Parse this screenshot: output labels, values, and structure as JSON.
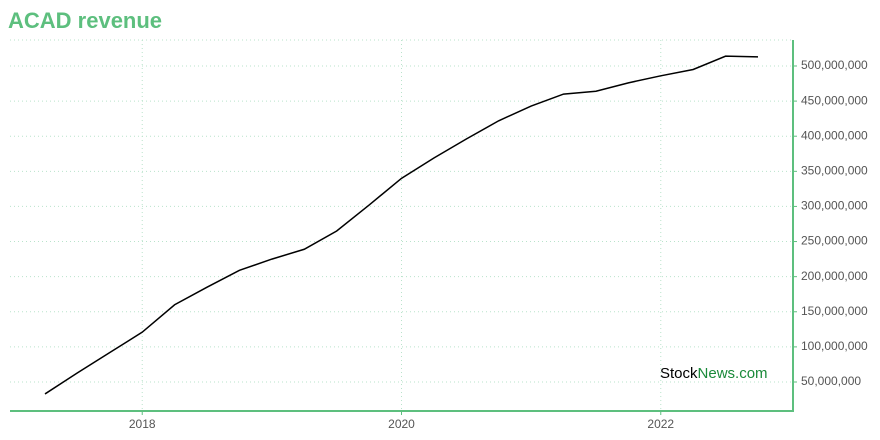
{
  "chart_data": {
    "type": "line",
    "title": "ACAD revenue",
    "watermark": [
      "Stock",
      "News.com"
    ],
    "x": [
      2017.25,
      2017.5,
      2017.75,
      2018.0,
      2018.25,
      2018.5,
      2018.75,
      2019.0,
      2019.25,
      2019.5,
      2019.75,
      2020.0,
      2020.25,
      2020.5,
      2020.75,
      2021.0,
      2021.25,
      2021.5,
      2021.75,
      2022.0,
      2022.25,
      2022.5,
      2022.75
    ],
    "series": [
      {
        "name": "ACAD revenue",
        "color": "#000000",
        "values": [
          33000000,
          63000000,
          92000000,
          121000000,
          160000000,
          185000000,
          209000000,
          225000000,
          239000000,
          265000000,
          302000000,
          340000000,
          369000000,
          396000000,
          422000000,
          443000000,
          460000000,
          464000000,
          476000000,
          486000000,
          495000000,
          514000000,
          513000000
        ]
      }
    ],
    "xlim": [
      2016.98,
      2023.02
    ],
    "xticks": [
      2018,
      2020,
      2022
    ],
    "ylim": [
      8700000,
      537000000
    ],
    "yticks": [
      {
        "value": 50000000,
        "label": "50,000,000"
      },
      {
        "value": 100000000,
        "label": "100,000,000"
      },
      {
        "value": 150000000,
        "label": "150,000,000"
      },
      {
        "value": 200000000,
        "label": "200,000,000"
      },
      {
        "value": 250000000,
        "label": "250,000,000"
      },
      {
        "value": 300000000,
        "label": "300,000,000"
      },
      {
        "value": 350000000,
        "label": "350,000,000"
      },
      {
        "value": 400000000,
        "label": "400,000,000"
      },
      {
        "value": 450000000,
        "label": "450,000,000"
      },
      {
        "value": 500000000,
        "label": "500,000,000"
      }
    ],
    "grid": true,
    "axis_color": "#5dbf7e"
  }
}
